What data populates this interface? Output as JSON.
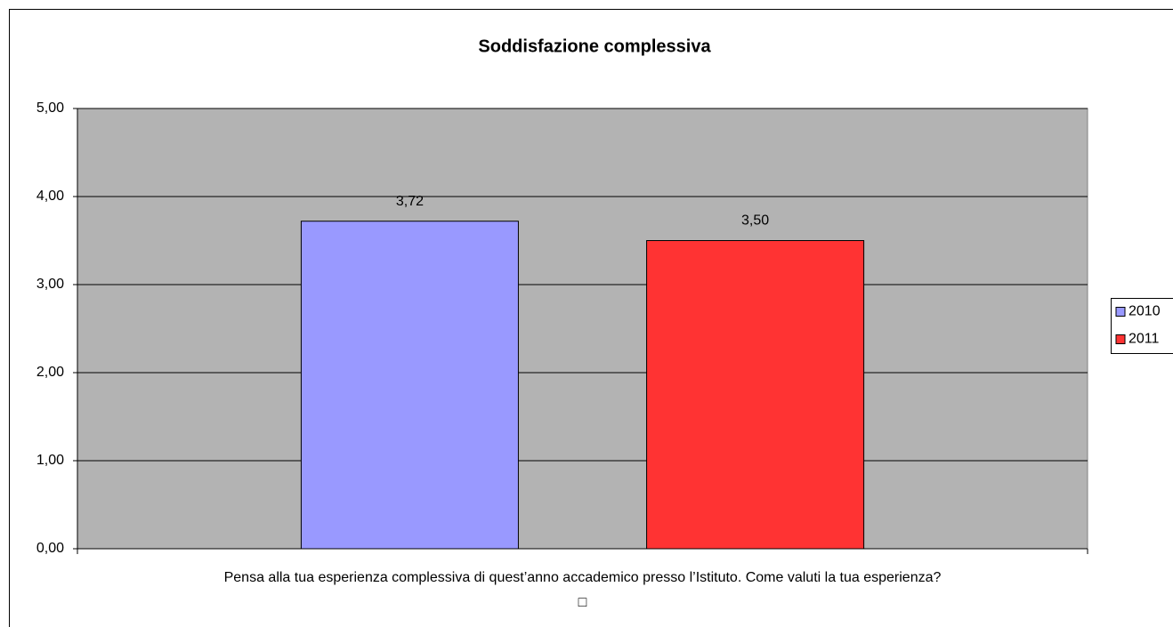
{
  "chart_data": {
    "type": "bar",
    "title": "Soddisfazione complessiva",
    "categories": [
      "Pensa alla tua esperienza complessiva di quest’anno accademico presso l’Istituto. Come valuti la tua esperienza?\n□"
    ],
    "series": [
      {
        "name": "2010",
        "color": "#9999ff",
        "values": [
          3.72
        ],
        "value_labels": [
          "3,72"
        ]
      },
      {
        "name": "2011",
        "color": "#ff3333",
        "values": [
          3.5
        ],
        "value_labels": [
          "3,50"
        ]
      }
    ],
    "ylim": [
      0,
      5
    ],
    "yticks": [
      {
        "value": 0,
        "label": "0,00"
      },
      {
        "value": 1,
        "label": "1,00"
      },
      {
        "value": 2,
        "label": "2,00"
      },
      {
        "value": 3,
        "label": "3,00"
      },
      {
        "value": 4,
        "label": "4,00"
      },
      {
        "value": 5,
        "label": "5,00"
      }
    ],
    "grid": true,
    "legend": "right"
  }
}
